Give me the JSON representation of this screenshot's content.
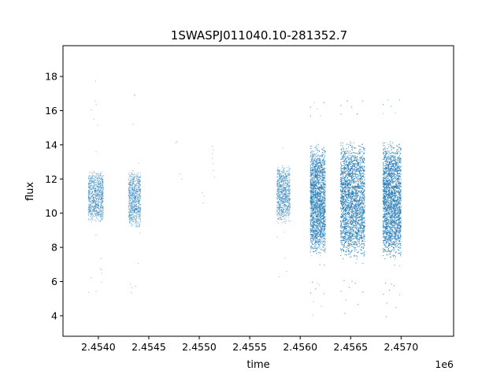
{
  "chart_data": {
    "type": "scatter",
    "title": "1SWASPJ011040.10-281352.7",
    "xlabel": "time",
    "ylabel": "flux",
    "x_offset_label": "1e6",
    "x_multiplier": 1000000,
    "xlim": [
      2.45365,
      2.45752
    ],
    "ylim": [
      2.8,
      19.8
    ],
    "x_ticks": [
      2.454,
      2.4545,
      2.455,
      2.4555,
      2.456,
      2.4565,
      2.457
    ],
    "x_tick_labels": [
      "2.4540",
      "2.4545",
      "2.4550",
      "2.4555",
      "2.4560",
      "2.4565",
      "2.4570"
    ],
    "y_ticks": [
      4,
      6,
      8,
      10,
      12,
      14,
      16,
      18
    ],
    "y_tick_labels": [
      "4",
      "6",
      "8",
      "10",
      "12",
      "14",
      "16",
      "18"
    ],
    "marker_color": "#1f77b4",
    "grid": false,
    "legend": "none",
    "observing_seasons": [
      {
        "x_start": 2.4539,
        "x_end": 2.45405,
        "core_y": [
          9.4,
          12.5
        ],
        "outlier_y": [
          3.8,
          18.2
        ],
        "density": 900
      },
      {
        "x_start": 2.4543,
        "x_end": 2.45442,
        "core_y": [
          9.1,
          12.6
        ],
        "outlier_y": [
          4.2,
          18.6
        ],
        "density": 800
      },
      {
        "x_start": 2.45577,
        "x_end": 2.4559,
        "core_y": [
          9.4,
          12.8
        ],
        "outlier_y": [
          6.0,
          15.5
        ],
        "density": 900
      },
      {
        "x_start": 2.4561,
        "x_end": 2.45625,
        "core_y": [
          7.5,
          14.0
        ],
        "outlier_y": [
          3.6,
          18.8
        ],
        "density": 3500
      },
      {
        "x_start": 2.4564,
        "x_end": 2.45664,
        "core_y": [
          7.3,
          14.2
        ],
        "outlier_y": [
          3.7,
          18.9
        ],
        "density": 5000
      },
      {
        "x_start": 2.45682,
        "x_end": 2.457,
        "core_y": [
          7.3,
          14.2
        ],
        "outlier_y": [
          3.5,
          19.0
        ],
        "density": 4500
      }
    ],
    "sparse_points": [
      {
        "x": 2.45477,
        "y": 14.1
      },
      {
        "x": 2.45478,
        "y": 14.2
      },
      {
        "x": 2.45481,
        "y": 12.3
      },
      {
        "x": 2.45483,
        "y": 12.0
      },
      {
        "x": 2.45503,
        "y": 11.2
      },
      {
        "x": 2.45504,
        "y": 10.6
      },
      {
        "x": 2.45505,
        "y": 11.0
      },
      {
        "x": 2.45513,
        "y": 13.9
      },
      {
        "x": 2.45513,
        "y": 13.5
      },
      {
        "x": 2.45514,
        "y": 13.7
      },
      {
        "x": 2.45514,
        "y": 12.5
      },
      {
        "x": 2.45515,
        "y": 12.1
      },
      {
        "x": 2.45513,
        "y": 13.2
      },
      {
        "x": 2.45514,
        "y": 12.9
      }
    ]
  }
}
